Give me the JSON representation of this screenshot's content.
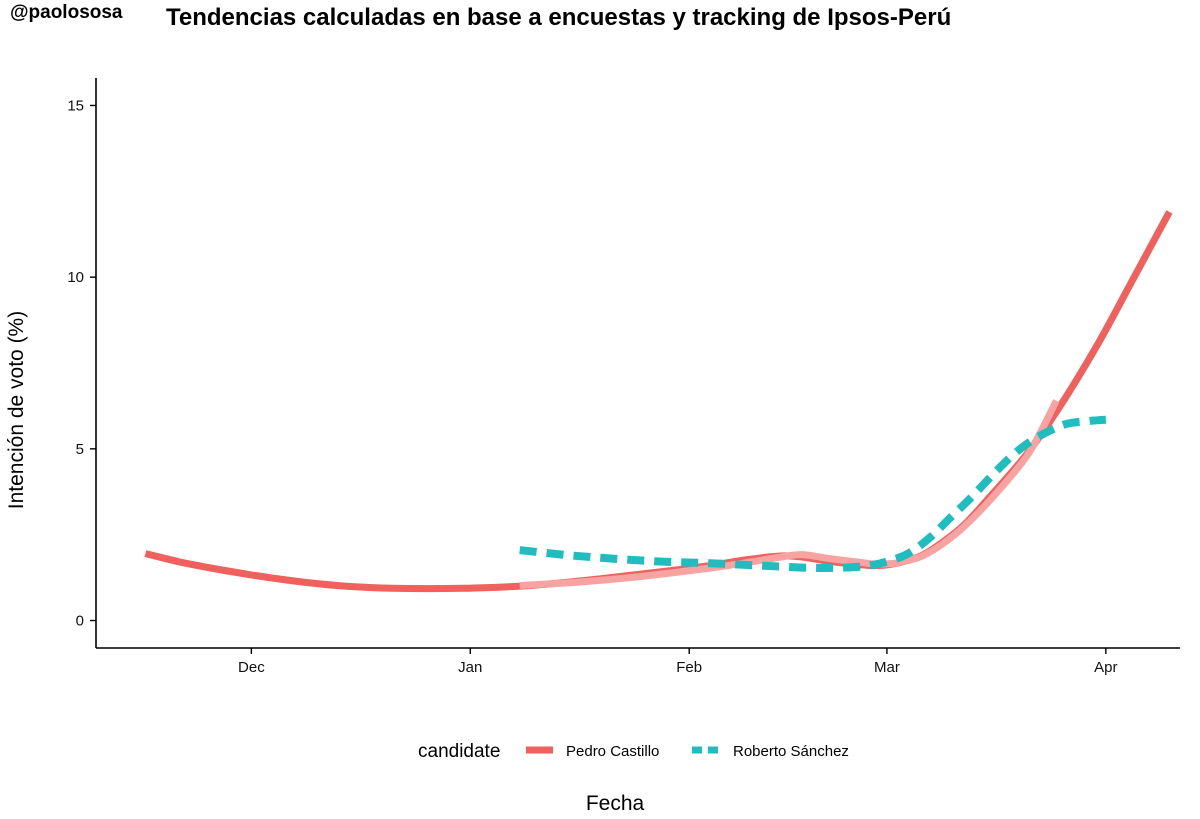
{
  "handle": "@paolososa",
  "chart_data": {
    "type": "line",
    "title": "Tendencias calculadas en base a encuestas y tracking de Ipsos-Perú",
    "xlabel": "Fecha",
    "ylabel": "Intención de voto (%)",
    "x_unit": "days since Dec 1",
    "x_ticks": [
      {
        "label": "Dec",
        "day": 0
      },
      {
        "label": "Jan",
        "day": 31
      },
      {
        "label": "Feb",
        "day": 62
      },
      {
        "label": "Mar",
        "day": 90
      },
      {
        "label": "Apr",
        "day": 121
      }
    ],
    "y_ticks": [
      0,
      5,
      10,
      15
    ],
    "xlim": [
      -22,
      131.5
    ],
    "ylim": [
      -0.8,
      15.8
    ],
    "grid": false,
    "legend_title": "candidate",
    "legend_position": "bottom",
    "series": [
      {
        "name": "Pedro Castillo",
        "color": "#F0605D",
        "style": "solid",
        "x": [
          -15,
          -10,
          -5,
          0,
          5,
          10,
          15,
          20,
          25,
          30,
          35,
          40,
          45,
          50,
          55,
          60,
          65,
          70,
          75,
          78,
          82,
          86,
          88,
          90,
          92,
          95,
          98,
          101,
          105,
          110,
          115,
          120,
          125,
          130
        ],
        "y": [
          1.95,
          1.7,
          1.5,
          1.33,
          1.18,
          1.06,
          0.98,
          0.94,
          0.93,
          0.94,
          0.97,
          1.03,
          1.12,
          1.23,
          1.35,
          1.47,
          1.6,
          1.77,
          1.88,
          1.85,
          1.72,
          1.63,
          1.6,
          1.62,
          1.7,
          1.9,
          2.3,
          2.8,
          3.7,
          4.9,
          6.4,
          8.1,
          10.0,
          11.9
        ]
      },
      {
        "name": "Roberto Sánchez",
        "color": "#1FBCC0",
        "style": "dashed",
        "x": [
          38,
          45,
          50,
          55,
          60,
          65,
          70,
          75,
          80,
          85,
          88,
          90,
          93,
          96,
          99,
          102,
          105,
          108,
          111,
          115,
          118,
          121
        ],
        "y": [
          2.05,
          1.9,
          1.82,
          1.75,
          1.7,
          1.67,
          1.62,
          1.57,
          1.53,
          1.55,
          1.62,
          1.72,
          1.95,
          2.4,
          3.0,
          3.6,
          4.25,
          4.85,
          5.3,
          5.7,
          5.8,
          5.85
        ]
      }
    ],
    "ci_band": {
      "name": "Pedro Castillo",
      "color": "#F7A3A1",
      "x": [
        38,
        45,
        50,
        55,
        60,
        65,
        70,
        75,
        78,
        82,
        86,
        88,
        90,
        92,
        95,
        98,
        101,
        105,
        110,
        114
      ],
      "y": [
        1.02,
        1.1,
        1.18,
        1.28,
        1.4,
        1.53,
        1.68,
        1.85,
        1.92,
        1.8,
        1.7,
        1.65,
        1.65,
        1.7,
        1.88,
        2.25,
        2.75,
        3.6,
        4.85,
        6.4
      ]
    }
  }
}
